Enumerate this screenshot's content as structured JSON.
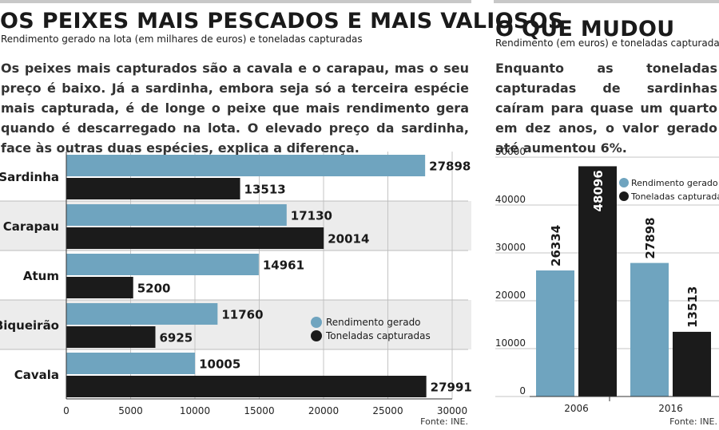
{
  "left": {
    "title": "OS PEIXES MAIS PESCADOS E MAIS VALIOSOS",
    "subtitle": "Rendimento gerado na lota (em milhares de euros) e toneladas capturadas",
    "intro": "Os peixes mais capturados são a cavala e o carapau, mas o seu preço é baixo. Já a sardinha, embora seja só a terceira espécie mais capturada, é de longe o peixe que mais rendimento gera quando é descarregado na lota. O elevado preço da sardinha, face às outras duas espécies, explica a diferença.",
    "source": "Fonte: INE."
  },
  "right": {
    "title": "O QUE MUDOU",
    "subtitle": "Rendimento (em euros) e toneladas capturadas",
    "intro": "Enquanto as toneladas capturadas de sardinhas caíram para quase um quarto em dez anos, o valor gerado até aumentou 6%.",
    "source": "Fonte: INE."
  },
  "colors": {
    "blue": "#6fa4bf",
    "black": "#1b1b1b",
    "grid": "#c4c4c4",
    "alt": "#ececec"
  },
  "chart_data": [
    {
      "type": "bar",
      "orientation": "horizontal",
      "categories": [
        "Sardinha",
        "Carapau",
        "Atum",
        "Biqueirão",
        "Cavala"
      ],
      "series": [
        {
          "name": "Rendimento gerado",
          "color": "#6fa4bf",
          "values": [
            27898,
            17130,
            14961,
            11760,
            10005
          ]
        },
        {
          "name": "Toneladas capturadas",
          "color": "#1b1b1b",
          "values": [
            13513,
            20014,
            5200,
            6925,
            27991
          ]
        }
      ],
      "xlim": [
        0,
        30000
      ],
      "xticks": [
        0,
        5000,
        10000,
        15000,
        20000,
        25000,
        30000
      ],
      "grid": true,
      "legend": "bottom-right"
    },
    {
      "type": "bar",
      "orientation": "vertical",
      "categories": [
        "2006",
        "2016"
      ],
      "series": [
        {
          "name": "Rendimento gerado",
          "color": "#6fa4bf",
          "values": [
            26334,
            27898
          ]
        },
        {
          "name": "Toneladas capturadas",
          "color": "#1b1b1b",
          "values": [
            48096,
            13513
          ]
        }
      ],
      "ylim": [
        0,
        50000
      ],
      "yticks": [
        0,
        10000,
        20000,
        30000,
        40000,
        50000
      ],
      "grid": true,
      "legend": "top-right"
    }
  ]
}
